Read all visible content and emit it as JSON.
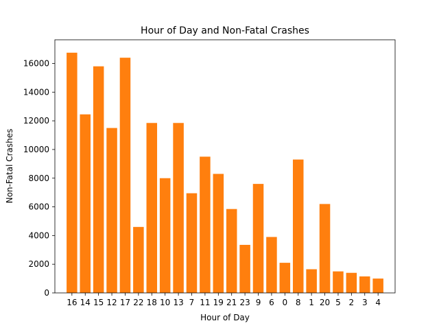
{
  "chart_data": {
    "type": "bar",
    "title": "Hour of Day and Non-Fatal Crashes",
    "xlabel": "Hour of Day",
    "ylabel": "Non-Fatal Crashes",
    "categories": [
      "16",
      "14",
      "15",
      "12",
      "17",
      "22",
      "18",
      "10",
      "13",
      "7",
      "11",
      "19",
      "21",
      "23",
      "9",
      "6",
      "0",
      "8",
      "1",
      "20",
      "5",
      "2",
      "3",
      "4"
    ],
    "values": [
      16750,
      12450,
      15800,
      11500,
      16400,
      4600,
      11850,
      8000,
      11850,
      6950,
      9500,
      8300,
      5850,
      3350,
      7600,
      3900,
      2100,
      9300,
      1650,
      6200,
      1500,
      1400,
      1150,
      1000
    ],
    "ylim": [
      0,
      17650
    ],
    "yticks": [
      0,
      2000,
      4000,
      6000,
      8000,
      10000,
      12000,
      14000,
      16000
    ],
    "grid": false,
    "bar_color": "#ff7f0e"
  }
}
